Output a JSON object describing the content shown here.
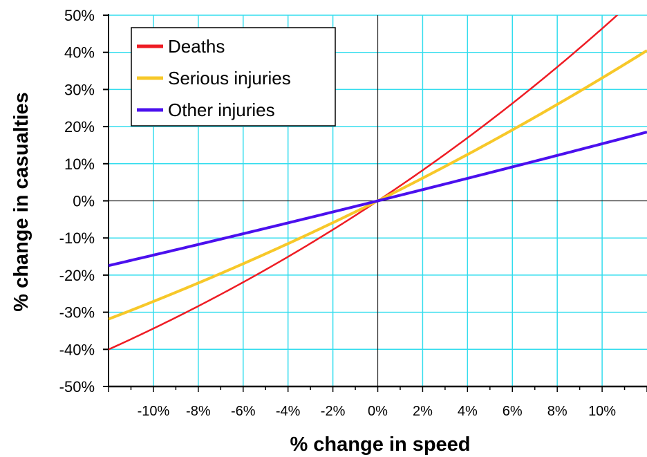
{
  "chart_data": {
    "type": "line",
    "xlabel": "% change in speed",
    "ylabel": "% change in casualties",
    "xlim": [
      -12,
      12
    ],
    "ylim": [
      -50,
      50
    ],
    "x_ticks": [
      -10,
      -8,
      -6,
      -4,
      -2,
      0,
      2,
      4,
      6,
      8,
      10
    ],
    "x_tick_labels": [
      "-10%",
      "-8%",
      "-6%",
      "-4%",
      "-2%",
      "0%",
      "2%",
      "4%",
      "6%",
      "8%",
      "10%"
    ],
    "y_ticks": [
      -50,
      -40,
      -30,
      -20,
      -10,
      0,
      10,
      20,
      30,
      40,
      50
    ],
    "y_tick_labels": [
      "-50%",
      "-40%",
      "-30%",
      "-20%",
      "-10%",
      "0%",
      "10%",
      "20%",
      "30%",
      "40%",
      "50%"
    ],
    "grid": true,
    "grid_color": "#33ddee",
    "legend_position": "top-left",
    "series": [
      {
        "name": "Deaths",
        "color": "#ee1c24",
        "exponent": 4,
        "x": [
          -12,
          -10,
          -8,
          -6,
          -4,
          -2,
          0,
          2,
          4,
          6,
          8,
          10
        ],
        "values": [
          -43.9,
          -38.4,
          -31.7,
          -22.6,
          -15.1,
          -7.8,
          0,
          8.2,
          17.0,
          26.2,
          36.0,
          46.4
        ]
      },
      {
        "name": "Serious injuries",
        "color": "#f7c829",
        "exponent": 3,
        "x": [
          -12,
          -10,
          -8,
          -6,
          -4,
          -2,
          0,
          2,
          4,
          6,
          8,
          10,
          12
        ],
        "values": [
          -31.9,
          -27.1,
          -22.1,
          -16.9,
          -11.5,
          -5.9,
          0,
          6.1,
          12.5,
          19.1,
          26.0,
          33.1,
          40.5
        ]
      },
      {
        "name": "Other injuries",
        "color": "#4b10ee",
        "exponent": 1.5,
        "x": [
          -12,
          -10,
          -8,
          -6,
          -4,
          -2,
          0,
          2,
          4,
          6,
          8,
          10,
          12
        ],
        "values": [
          -17.6,
          -14.6,
          -11.7,
          -8.9,
          -5.9,
          -3.0,
          0,
          3.0,
          6.1,
          9.2,
          12.3,
          15.4,
          18.6
        ]
      }
    ]
  }
}
